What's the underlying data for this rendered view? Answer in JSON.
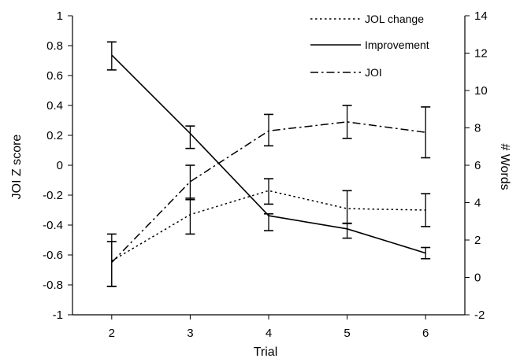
{
  "chart_data": {
    "type": "line",
    "x": [
      2,
      3,
      4,
      5,
      6
    ],
    "xlabel": "Trial",
    "ylabel_left": "JOI Z score",
    "ylabel_right": "# Words",
    "ylim_left": [
      -1,
      1
    ],
    "ylim_right": [
      -2,
      14
    ],
    "xlim": [
      1.5,
      6.5
    ],
    "yticks_left": [
      -1,
      -0.8,
      -0.6,
      -0.4,
      -0.2,
      0,
      0.2,
      0.4,
      0.6,
      0.8,
      1
    ],
    "yticks_left_labels": [
      "-1",
      "-0.8",
      "-0.6",
      "-0.4",
      "-0.2",
      "0",
      "0.2",
      "0.4",
      "0.6",
      "0.8",
      "1"
    ],
    "yticks_right": [
      -2,
      0,
      2,
      4,
      6,
      8,
      10,
      12,
      14
    ],
    "yticks_right_labels": [
      "-2",
      "0",
      "2",
      "4",
      "6",
      "8",
      "10",
      "12",
      "14"
    ],
    "xticks_labels": [
      "2",
      "3",
      "4",
      "5",
      "6"
    ],
    "grid": false,
    "legend_position": "top-right",
    "series": [
      {
        "name": "JOL change",
        "axis": "left",
        "style": "dotted",
        "values": [
          -0.64,
          -0.33,
          -0.17,
          -0.29,
          -0.3
        ],
        "err_low": [
          -0.81,
          -0.46,
          -0.26,
          -0.39,
          -0.41
        ],
        "err_high": [
          -0.51,
          -0.22,
          -0.09,
          -0.17,
          -0.19
        ]
      },
      {
        "name": "Improvement",
        "axis": "right",
        "style": "solid",
        "values": [
          11.9,
          7.7,
          3.3,
          2.6,
          1.3
        ],
        "err_low": [
          11.1,
          6.9,
          2.5,
          2.1,
          1.0
        ],
        "err_high": [
          12.6,
          8.1,
          3.4,
          2.9,
          1.6
        ]
      },
      {
        "name": "JOI",
        "axis": "left",
        "style": "dashdot",
        "values": [
          -0.65,
          -0.11,
          0.23,
          0.29,
          0.22
        ],
        "err_low": [
          -0.81,
          -0.23,
          0.13,
          0.18,
          0.05
        ],
        "err_high": [
          -0.46,
          0.0,
          0.34,
          0.4,
          0.39
        ]
      }
    ]
  }
}
